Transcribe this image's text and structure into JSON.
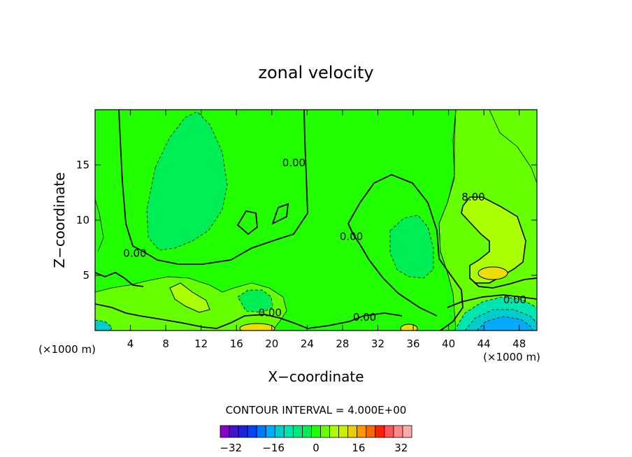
{
  "chart_data": {
    "type": "contour",
    "title": "zonal velocity",
    "xlabel": "X−coordinate",
    "ylabel": "Z−coordinate",
    "x_unit_left": "(×1000 m)",
    "x_unit_right": "(×1000 m)",
    "xlim": [
      0,
      50
    ],
    "ylim": [
      0,
      20
    ],
    "x_ticks": [
      4,
      8,
      12,
      16,
      20,
      24,
      28,
      32,
      36,
      40,
      44,
      48
    ],
    "x_tick_labels": [
      "4",
      "8",
      "12",
      "16",
      "20",
      "24",
      "28",
      "32",
      "36",
      "40",
      "44",
      "48"
    ],
    "y_ticks": [
      5,
      10,
      15
    ],
    "y_tick_labels": [
      "5",
      "10",
      "15"
    ],
    "contour_interval_label": "CONTOUR INTERVAL = 4.000E+00",
    "contour_interval": 4,
    "contour_labels": [
      {
        "text": "0.00",
        "x": 4.5,
        "y": 7.0
      },
      {
        "text": "0.00",
        "x": 22.5,
        "y": 15.2
      },
      {
        "text": "0.00",
        "x": 29.0,
        "y": 8.5
      },
      {
        "text": "0.00",
        "x": 19.8,
        "y": 1.6
      },
      {
        "text": "0.00",
        "x": 30.5,
        "y": 1.2
      },
      {
        "text": "0.00",
        "x": 47.5,
        "y": 2.8
      },
      {
        "text": "8.00",
        "x": 42.8,
        "y": 12.1
      }
    ],
    "colorbar": {
      "min": -36,
      "max": 36,
      "tick_values": [
        -32,
        -16,
        0,
        16,
        32
      ],
      "tick_labels": [
        "−32",
        "−16",
        "0",
        "16",
        "32"
      ],
      "colors": [
        "#8800cc",
        "#4411cc",
        "#1a22dd",
        "#0044ff",
        "#0077ff",
        "#00aaff",
        "#00cccc",
        "#00e6b0",
        "#00e87a",
        "#00ee55",
        "#22ff00",
        "#66ff00",
        "#aaff00",
        "#ccee00",
        "#eecc00",
        "#ff9900",
        "#ff6600",
        "#ff2200",
        "#ff5555",
        "#ff8888",
        "#ffaaaa"
      ]
    }
  }
}
